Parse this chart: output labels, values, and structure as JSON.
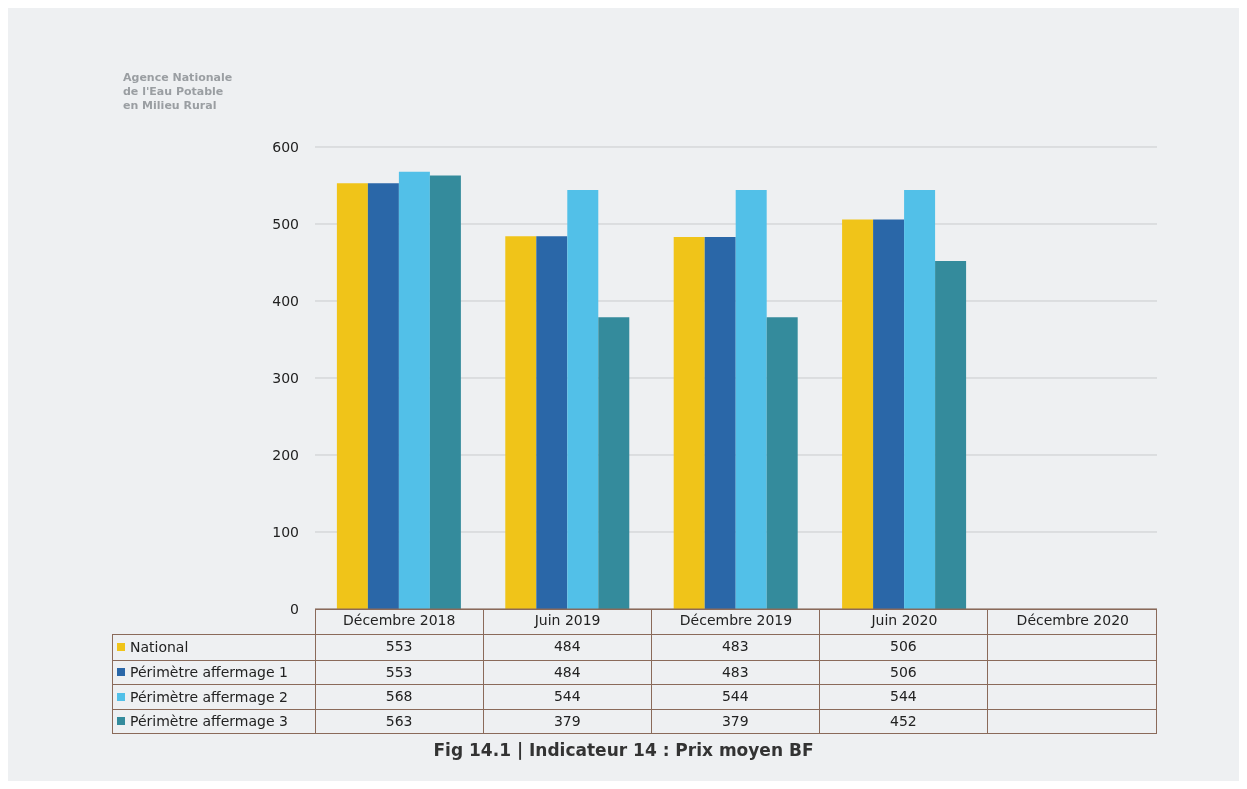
{
  "chart_data": {
    "type": "bar",
    "title": "Fig 14.1 | Indicateur 14 : Prix moyen BF",
    "annotations": [
      "Agence Nationale de l'Eau Potable en Milieu Rural"
    ],
    "categories": [
      "Décembre 2018",
      "Juin 2019",
      "Décembre 2019",
      "Juin 2020",
      "Décembre 2020"
    ],
    "series": [
      {
        "name": "National",
        "color": "#f0c419",
        "values": [
          553,
          484,
          483,
          506,
          null
        ]
      },
      {
        "name": "Périmètre affermage 1",
        "color": "#2a67a8",
        "values": [
          553,
          484,
          483,
          506,
          null
        ]
      },
      {
        "name": "Périmètre affermage 2",
        "color": "#52c0e8",
        "values": [
          568,
          544,
          544,
          544,
          null
        ]
      },
      {
        "name": "Périmètre affermage 3",
        "color": "#348b9c",
        "values": [
          563,
          379,
          379,
          452,
          null
        ]
      }
    ],
    "ylim": [
      0,
      600
    ],
    "yticks": [
      0,
      100,
      200,
      300,
      400,
      500,
      600
    ],
    "grid": "y",
    "legend": "bottom",
    "data_labels": true
  }
}
